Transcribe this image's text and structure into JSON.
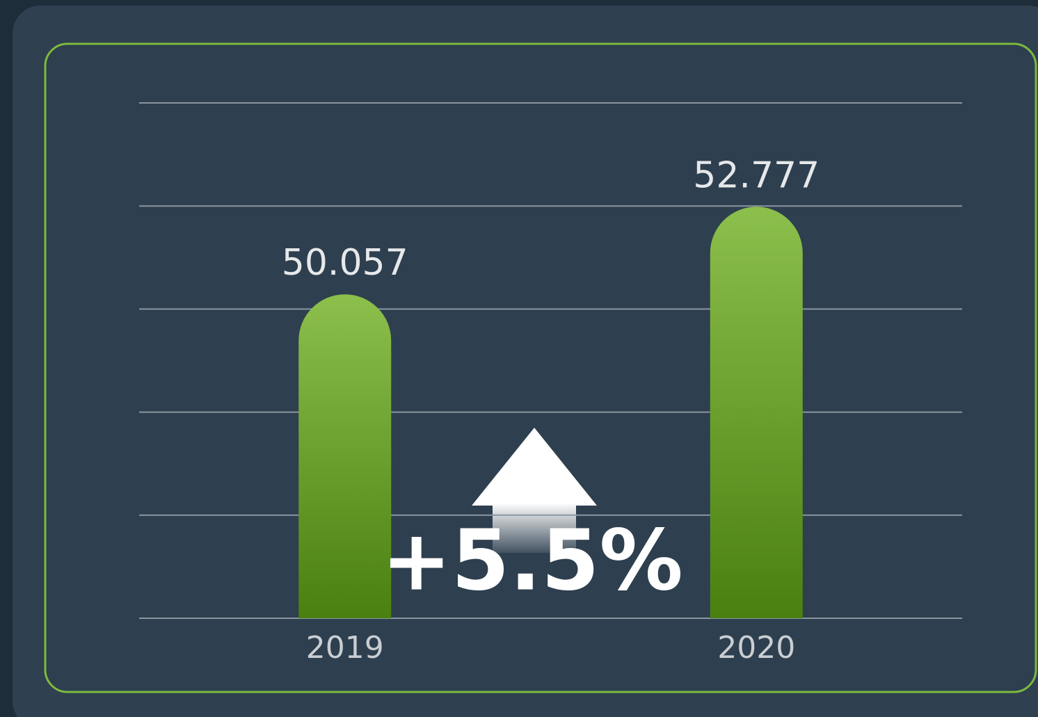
{
  "chart_data": {
    "type": "bar",
    "categories": [
      "2019",
      "2020"
    ],
    "values": [
      50.057,
      52.777
    ],
    "color": "#4a8010",
    "ylim": [
      40,
      56
    ],
    "yticks": [
      40,
      43.2,
      46.4,
      49.6,
      52.8,
      56
    ],
    "grid": true,
    "annotation": "+5.5%"
  }
}
